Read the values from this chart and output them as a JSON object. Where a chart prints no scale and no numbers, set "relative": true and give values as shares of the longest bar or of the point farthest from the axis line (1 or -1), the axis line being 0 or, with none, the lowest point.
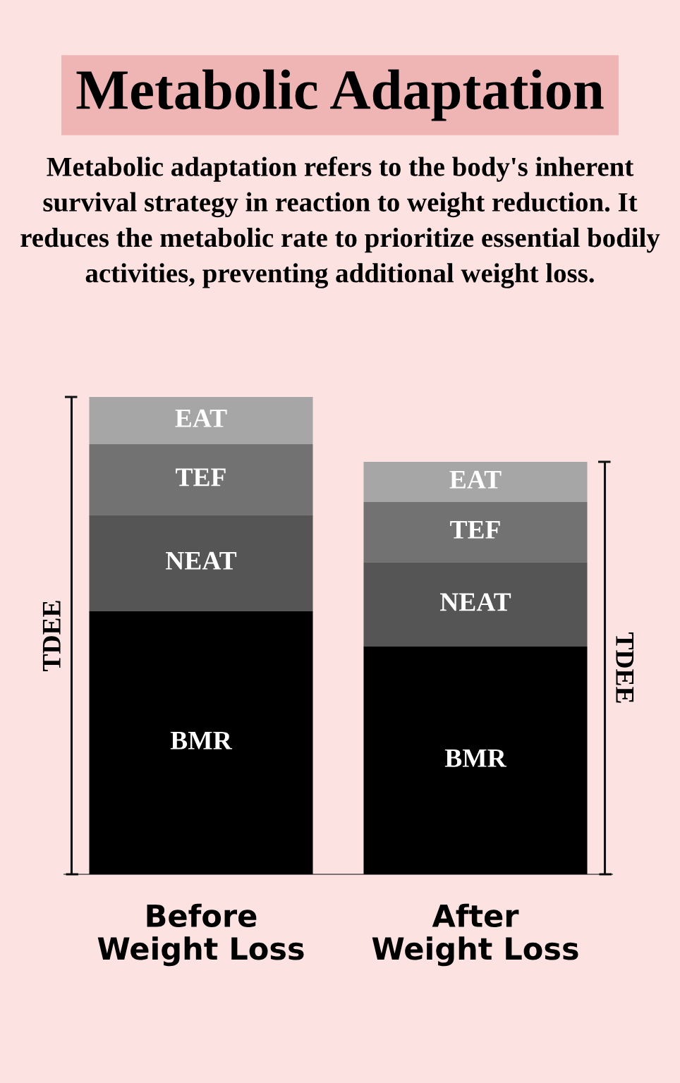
{
  "chart_data": {
    "type": "bar",
    "stacked": true,
    "relative": true,
    "legend": false,
    "grid": false,
    "title": "Metabolic Adaptation",
    "subtitle": "Metabolic adaptation refers to the body's inherent survival strategy in reaction to weight reduction. It reduces the metabolic rate to prioritize essential bodily activities, preventing additional weight loss.",
    "categories": [
      "Before\nWeight Loss",
      "After\nWeight Loss"
    ],
    "series": [
      {
        "name": "BMR",
        "color": "#000000",
        "values": [
          0.551,
          0.477
        ]
      },
      {
        "name": "NEAT",
        "color": "#555555",
        "values": [
          0.202,
          0.177
        ]
      },
      {
        "name": "TEF",
        "color": "#727272",
        "values": [
          0.148,
          0.126
        ]
      },
      {
        "name": "EAT",
        "color": "#a6a6a6",
        "values": [
          0.099,
          0.084
        ]
      }
    ],
    "annotations": [
      "TDEE",
      "TDEE"
    ]
  }
}
